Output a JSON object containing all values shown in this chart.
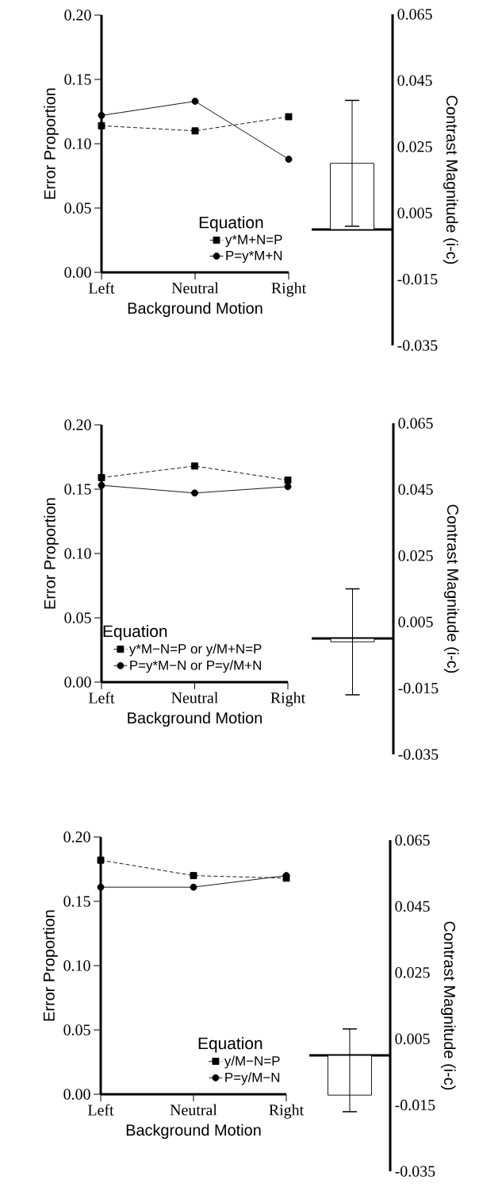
{
  "chart_data": [
    {
      "type": "line",
      "categories": [
        "Left",
        "Neutral",
        "Right"
      ],
      "xlabel": "Background Motion",
      "ylabel": "Error Proportion",
      "ylim": [
        0,
        0.2
      ],
      "yticks": [
        {
          "value": 0,
          "label": "0.00"
        },
        0.05,
        {
          "value": 0.1,
          "label": "0.10"
        },
        0.15,
        {
          "value": 0.2,
          "label": "0.20"
        }
      ],
      "legend": "bottom right",
      "legend_title": "Equation",
      "series": [
        {
          "name": "y*M+N=P",
          "color": "#000000",
          "marker": "square",
          "line_style": "dashed",
          "values": [
            0.114,
            0.11,
            0.121
          ]
        },
        {
          "name": "P=y*M+N",
          "color": "#000000",
          "marker": "circle",
          "line_style": "solid",
          "values": [
            0.122,
            0.133,
            0.088
          ]
        }
      ]
    },
    {
      "type": "bar",
      "categories": [
        null
      ],
      "values": [
        0.02
      ],
      "errors": [
        0.019
      ],
      "color": "#ffffff",
      "ylabel": "Contrast Magnitude (i-c)",
      "ylim": [
        -0.035,
        0.065
      ],
      "yticks": [
        -0.035,
        -0.015,
        0.005,
        0.025,
        0.045,
        0.065
      ],
      "tick_labels": "y"
    },
    {
      "type": "line",
      "categories": [
        "Left",
        "Neutral",
        "Right"
      ],
      "xlabel": "Background Motion",
      "ylabel": "Error Proportion",
      "ylim": [
        0,
        0.2
      ],
      "yticks": [
        {
          "value": 0,
          "label": "0.00"
        },
        0.05,
        {
          "value": 0.1,
          "label": "0.10"
        },
        0.15,
        {
          "value": 0.2,
          "label": "0.20"
        }
      ],
      "legend": "bottom left",
      "legend_title": "Equation",
      "series": [
        {
          "name": "y*M−N=P or y/M+N=P",
          "color": "#000000",
          "marker": "square",
          "line_style": "dashed",
          "values": [
            0.159,
            0.168,
            0.157
          ]
        },
        {
          "name": "P=y*M−N or P=y/M+N",
          "color": "#000000",
          "marker": "circle",
          "line_style": "solid",
          "values": [
            0.153,
            0.147,
            0.152
          ]
        }
      ]
    },
    {
      "type": "bar",
      "categories": [
        null
      ],
      "values": [
        -0.001
      ],
      "errors": [
        0.016
      ],
      "color": "#ffffff",
      "ylabel": "Contrast Magnitude (i-c)",
      "ylim": [
        -0.035,
        0.065
      ],
      "yticks": [
        -0.035,
        -0.015,
        0.005,
        0.025,
        0.045,
        0.065
      ],
      "tick_labels": "y"
    },
    {
      "type": "line",
      "categories": [
        "Left",
        "Neutral",
        "Right"
      ],
      "xlabel": "Background Motion",
      "ylabel": "Error Proportion",
      "ylim": [
        0,
        0.2
      ],
      "yticks": [
        {
          "value": 0,
          "label": "0.00"
        },
        0.05,
        {
          "value": 0.1,
          "label": "0.10"
        },
        0.15,
        {
          "value": 0.2,
          "label": "0.20"
        }
      ],
      "legend": "bottom right",
      "legend_title": "Equation",
      "series": [
        {
          "name": "y/M−N=P",
          "color": "#000000",
          "marker": "square",
          "line_style": "dashed",
          "values": [
            0.182,
            0.17,
            0.168
          ]
        },
        {
          "name": "P=y/M−N",
          "color": "#000000",
          "marker": "circle",
          "line_style": "solid",
          "values": [
            0.161,
            0.161,
            0.17
          ]
        }
      ]
    },
    {
      "type": "bar",
      "categories": [
        null
      ],
      "values": [
        -0.012
      ],
      "errors": [
        [
          -0.017,
          0.008
        ]
      ],
      "color": "#ffffff",
      "ylabel": "Contrast Magnitude (i-c)",
      "ylim": [
        -0.035,
        0.065
      ],
      "yticks": [
        -0.035,
        -0.015,
        0.005,
        0.025,
        0.045,
        0.065
      ],
      "tick_labels": "y"
    }
  ]
}
